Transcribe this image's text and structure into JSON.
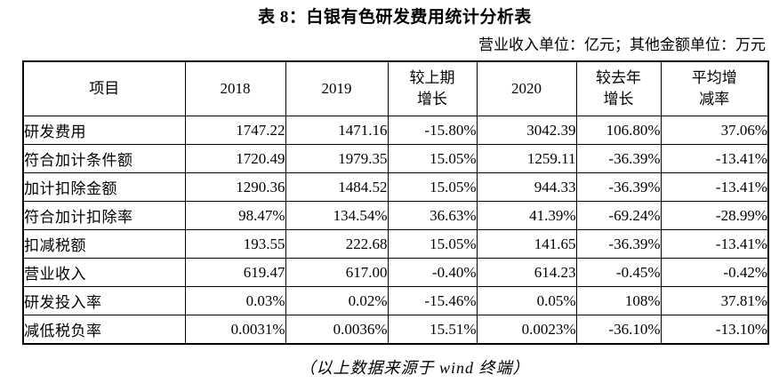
{
  "title": "表 8：白银有色研发费用统计分析表",
  "subtitle": "营业收入单位：亿元；其他金额单位：万元",
  "footer": "（以上数据来源于 wind 终端）",
  "colors": {
    "text": "#000000",
    "border": "#000000",
    "background": "#ffffff"
  },
  "chart_data": {
    "type": "table",
    "columns": [
      "项目",
      "2018",
      "2019",
      "较上期\n增长",
      "2020",
      "较去年\n增长",
      "平均增\n减率"
    ],
    "rows": [
      [
        "研发费用",
        "1747.22",
        "1471.16",
        "-15.80%",
        "3042.39",
        "106.80%",
        "37.06%"
      ],
      [
        "符合加计条件额",
        "1720.49",
        "1979.35",
        "15.05%",
        "1259.11",
        "-36.39%",
        "-13.41%"
      ],
      [
        "加计扣除金额",
        "1290.36",
        "1484.52",
        "15.05%",
        "944.33",
        "-36.39%",
        "-13.41%"
      ],
      [
        "符合加计扣除率",
        "98.47%",
        "134.54%",
        "36.63%",
        "41.39%",
        "-69.24%",
        "-28.99%"
      ],
      [
        "扣减税额",
        "193.55",
        "222.68",
        "15.05%",
        "141.65",
        "-36.39%",
        "-13.41%"
      ],
      [
        "营业收入",
        "619.47",
        "617.00",
        "-0.40%",
        "614.23",
        "-0.45%",
        "-0.42%"
      ],
      [
        "研发投入率",
        "0.03%",
        "0.02%",
        "-15.46%",
        "0.05%",
        "108%",
        "37.81%"
      ],
      [
        "减低税负率",
        "0.0031%",
        "0.0036%",
        "15.51%",
        "0.0023%",
        "-36.10%",
        "-13.10%"
      ]
    ]
  }
}
